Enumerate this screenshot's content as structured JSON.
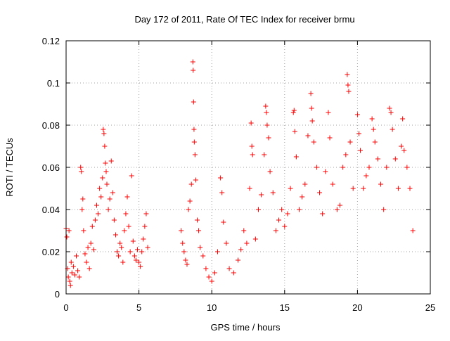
{
  "chart_data": {
    "type": "scatter",
    "title": "Day 172 of 2011, Rate Of TEC Index for receiver brmu",
    "xlabel": "GPS time / hours",
    "ylabel": "ROTI / TECUs",
    "xlim": [
      0,
      25
    ],
    "ylim": [
      0,
      0.12
    ],
    "xticks": [
      0,
      5,
      10,
      15,
      20,
      25
    ],
    "yticks": [
      0,
      0.02,
      0.04,
      0.06,
      0.08,
      0.1,
      0.12
    ],
    "xtick_labels": [
      "0",
      "5",
      "10",
      "15",
      "20",
      "25"
    ],
    "ytick_labels": [
      "0",
      "0.02",
      "0.04",
      "0.06",
      "0.08",
      "0.1",
      "0.12"
    ],
    "grid": true,
    "marker": "plus",
    "color": "#ff0000",
    "series": [
      {
        "points": [
          [
            0.0,
            0.031
          ],
          [
            0.05,
            0.027
          ],
          [
            0.1,
            0.012
          ],
          [
            0.15,
            0.008
          ],
          [
            0.2,
            0.03
          ],
          [
            0.25,
            0.006
          ],
          [
            0.3,
            0.004
          ],
          [
            0.35,
            0.015
          ],
          [
            0.4,
            0.01
          ],
          [
            0.5,
            0.013
          ],
          [
            0.6,
            0.009
          ],
          [
            0.7,
            0.018
          ],
          [
            0.8,
            0.011
          ],
          [
            0.9,
            0.008
          ],
          [
            1.0,
            0.06
          ],
          [
            1.05,
            0.058
          ],
          [
            1.1,
            0.04
          ],
          [
            1.15,
            0.045
          ],
          [
            1.2,
            0.03
          ],
          [
            1.3,
            0.019
          ],
          [
            1.4,
            0.015
          ],
          [
            1.5,
            0.022
          ],
          [
            1.6,
            0.012
          ],
          [
            1.7,
            0.024
          ],
          [
            1.8,
            0.032
          ],
          [
            1.9,
            0.021
          ],
          [
            2.0,
            0.035
          ],
          [
            2.1,
            0.042
          ],
          [
            2.2,
            0.038
          ],
          [
            2.3,
            0.05
          ],
          [
            2.4,
            0.046
          ],
          [
            2.5,
            0.055
          ],
          [
            2.55,
            0.078
          ],
          [
            2.6,
            0.076
          ],
          [
            2.65,
            0.07
          ],
          [
            2.7,
            0.062
          ],
          [
            2.75,
            0.058
          ],
          [
            2.8,
            0.052
          ],
          [
            2.9,
            0.04
          ],
          [
            3.0,
            0.045
          ],
          [
            3.1,
            0.063
          ],
          [
            3.2,
            0.048
          ],
          [
            3.3,
            0.035
          ],
          [
            3.4,
            0.028
          ],
          [
            3.5,
            0.02
          ],
          [
            3.6,
            0.018
          ],
          [
            3.7,
            0.024
          ],
          [
            3.8,
            0.022
          ],
          [
            3.9,
            0.015
          ],
          [
            4.0,
            0.03
          ],
          [
            4.1,
            0.038
          ],
          [
            4.2,
            0.046
          ],
          [
            4.3,
            0.032
          ],
          [
            4.4,
            0.02
          ],
          [
            4.5,
            0.056
          ],
          [
            4.6,
            0.025
          ],
          [
            4.7,
            0.018
          ],
          [
            4.8,
            0.016
          ],
          [
            4.9,
            0.021
          ],
          [
            5.0,
            0.015
          ],
          [
            5.1,
            0.013
          ],
          [
            5.2,
            0.02
          ],
          [
            5.3,
            0.026
          ],
          [
            5.4,
            0.032
          ],
          [
            5.5,
            0.038
          ],
          [
            5.6,
            0.022
          ],
          [
            7.9,
            0.03
          ],
          [
            8.0,
            0.024
          ],
          [
            8.1,
            0.02
          ],
          [
            8.2,
            0.016
          ],
          [
            8.3,
            0.014
          ],
          [
            8.4,
            0.04
          ],
          [
            8.5,
            0.044
          ],
          [
            8.6,
            0.052
          ],
          [
            8.7,
            0.11
          ],
          [
            8.72,
            0.106
          ],
          [
            8.75,
            0.091
          ],
          [
            8.78,
            0.078
          ],
          [
            8.8,
            0.072
          ],
          [
            8.85,
            0.066
          ],
          [
            8.9,
            0.054
          ],
          [
            9.0,
            0.035
          ],
          [
            9.1,
            0.03
          ],
          [
            9.2,
            0.022
          ],
          [
            9.4,
            0.018
          ],
          [
            9.6,
            0.012
          ],
          [
            9.8,
            0.008
          ],
          [
            10.0,
            0.006
          ],
          [
            10.2,
            0.01
          ],
          [
            10.4,
            0.02
          ],
          [
            10.6,
            0.055
          ],
          [
            10.7,
            0.048
          ],
          [
            10.8,
            0.034
          ],
          [
            11.0,
            0.024
          ],
          [
            11.2,
            0.012
          ],
          [
            11.5,
            0.01
          ],
          [
            11.8,
            0.016
          ],
          [
            12.0,
            0.021
          ],
          [
            12.2,
            0.03
          ],
          [
            12.4,
            0.024
          ],
          [
            12.6,
            0.05
          ],
          [
            12.7,
            0.081
          ],
          [
            12.75,
            0.07
          ],
          [
            12.8,
            0.066
          ],
          [
            13.0,
            0.026
          ],
          [
            13.2,
            0.04
          ],
          [
            13.4,
            0.047
          ],
          [
            13.6,
            0.066
          ],
          [
            13.7,
            0.089
          ],
          [
            13.75,
            0.086
          ],
          [
            13.8,
            0.08
          ],
          [
            13.9,
            0.074
          ],
          [
            14.0,
            0.058
          ],
          [
            14.2,
            0.048
          ],
          [
            14.4,
            0.03
          ],
          [
            14.6,
            0.035
          ],
          [
            14.8,
            0.04
          ],
          [
            15.0,
            0.032
          ],
          [
            15.2,
            0.038
          ],
          [
            15.4,
            0.05
          ],
          [
            15.6,
            0.086
          ],
          [
            15.65,
            0.087
          ],
          [
            15.7,
            0.077
          ],
          [
            15.8,
            0.065
          ],
          [
            16.0,
            0.04
          ],
          [
            16.2,
            0.046
          ],
          [
            16.4,
            0.052
          ],
          [
            16.6,
            0.075
          ],
          [
            16.8,
            0.095
          ],
          [
            16.85,
            0.088
          ],
          [
            16.9,
            0.082
          ],
          [
            17.0,
            0.072
          ],
          [
            17.2,
            0.06
          ],
          [
            17.4,
            0.048
          ],
          [
            17.6,
            0.038
          ],
          [
            17.8,
            0.058
          ],
          [
            18.0,
            0.086
          ],
          [
            18.1,
            0.074
          ],
          [
            18.3,
            0.052
          ],
          [
            18.6,
            0.04
          ],
          [
            18.8,
            0.042
          ],
          [
            19.0,
            0.06
          ],
          [
            19.2,
            0.066
          ],
          [
            19.3,
            0.104
          ],
          [
            19.35,
            0.099
          ],
          [
            19.4,
            0.096
          ],
          [
            19.5,
            0.072
          ],
          [
            19.7,
            0.05
          ],
          [
            20.0,
            0.085
          ],
          [
            20.1,
            0.076
          ],
          [
            20.2,
            0.068
          ],
          [
            20.4,
            0.05
          ],
          [
            20.6,
            0.056
          ],
          [
            20.8,
            0.06
          ],
          [
            21.0,
            0.083
          ],
          [
            21.1,
            0.078
          ],
          [
            21.2,
            0.072
          ],
          [
            21.4,
            0.064
          ],
          [
            21.6,
            0.052
          ],
          [
            21.8,
            0.04
          ],
          [
            22.0,
            0.06
          ],
          [
            22.2,
            0.088
          ],
          [
            22.3,
            0.086
          ],
          [
            22.4,
            0.078
          ],
          [
            22.6,
            0.064
          ],
          [
            22.8,
            0.05
          ],
          [
            23.0,
            0.07
          ],
          [
            23.1,
            0.083
          ],
          [
            23.2,
            0.068
          ],
          [
            23.4,
            0.06
          ],
          [
            23.6,
            0.05
          ],
          [
            23.8,
            0.03
          ]
        ]
      }
    ]
  }
}
